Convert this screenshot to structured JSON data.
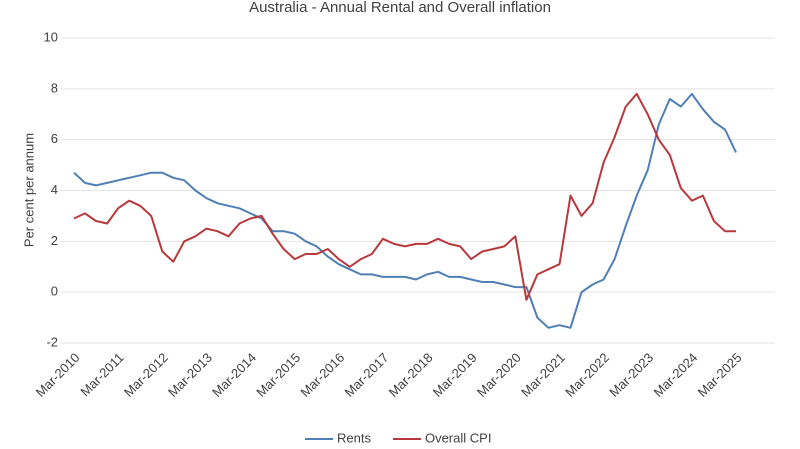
{
  "chart_data": {
    "type": "line",
    "title": "Australia - Annual Rental and Overall inflation",
    "y_label": "Per cent per annum",
    "categories": [
      "Mar-2010",
      null,
      null,
      null,
      "Mar-2011",
      null,
      null,
      null,
      "Mar-2012",
      null,
      null,
      null,
      "Mar-2013",
      null,
      null,
      null,
      "Mar-2014",
      null,
      null,
      null,
      "Mar-2015",
      null,
      null,
      null,
      "Mar-2016",
      null,
      null,
      null,
      "Mar-2017",
      null,
      null,
      null,
      "Mar-2018",
      null,
      null,
      null,
      "Mar-2019",
      null,
      null,
      null,
      "Mar-2020",
      null,
      null,
      null,
      "Mar-2021",
      null,
      null,
      null,
      "Mar-2022",
      null,
      null,
      null,
      "Mar-2023",
      null,
      null,
      null,
      "Mar-2024",
      null,
      null,
      null,
      "Mar-2025"
    ],
    "series": [
      {
        "name": "Rents",
        "color": "#4f7fb5",
        "values": [
          4.7,
          4.3,
          4.2,
          4.3,
          4.4,
          4.5,
          4.6,
          4.7,
          4.7,
          4.5,
          4.4,
          4.0,
          3.7,
          3.5,
          3.4,
          3.3,
          3.1,
          2.9,
          2.4,
          2.4,
          2.3,
          2.0,
          1.8,
          1.4,
          1.1,
          0.9,
          0.7,
          0.7,
          0.6,
          0.6,
          0.6,
          0.5,
          0.7,
          0.8,
          0.6,
          0.6,
          0.5,
          0.4,
          0.4,
          0.3,
          0.2,
          0.2,
          -1.0,
          -1.4,
          -1.3,
          -1.4,
          0.0,
          0.3,
          0.5,
          1.3,
          2.6,
          3.8,
          4.8,
          6.6,
          7.6,
          7.3,
          7.8,
          7.2,
          6.7,
          6.4,
          5.5
        ]
      },
      {
        "name": "Overall CPI",
        "color": "#b8383c",
        "values": [
          2.9,
          3.1,
          2.8,
          2.7,
          3.3,
          3.6,
          3.4,
          3.0,
          1.6,
          1.2,
          2.0,
          2.2,
          2.5,
          2.4,
          2.2,
          2.7,
          2.9,
          3.0,
          2.3,
          1.7,
          1.3,
          1.5,
          1.5,
          1.7,
          1.3,
          1.0,
          1.3,
          1.5,
          2.1,
          1.9,
          1.8,
          1.9,
          1.9,
          2.1,
          1.9,
          1.8,
          1.3,
          1.6,
          1.7,
          1.8,
          2.2,
          -0.3,
          0.7,
          0.9,
          1.1,
          3.8,
          3.0,
          3.5,
          5.1,
          6.1,
          7.3,
          7.8,
          7.0,
          6.0,
          5.4,
          4.1,
          3.6,
          3.8,
          2.8,
          2.4,
          2.4
        ]
      }
    ],
    "ylim": [
      -2,
      10
    ],
    "yticks": [
      -2,
      0,
      2,
      4,
      6,
      8,
      10
    ],
    "grid": true,
    "legend": "bottom"
  }
}
